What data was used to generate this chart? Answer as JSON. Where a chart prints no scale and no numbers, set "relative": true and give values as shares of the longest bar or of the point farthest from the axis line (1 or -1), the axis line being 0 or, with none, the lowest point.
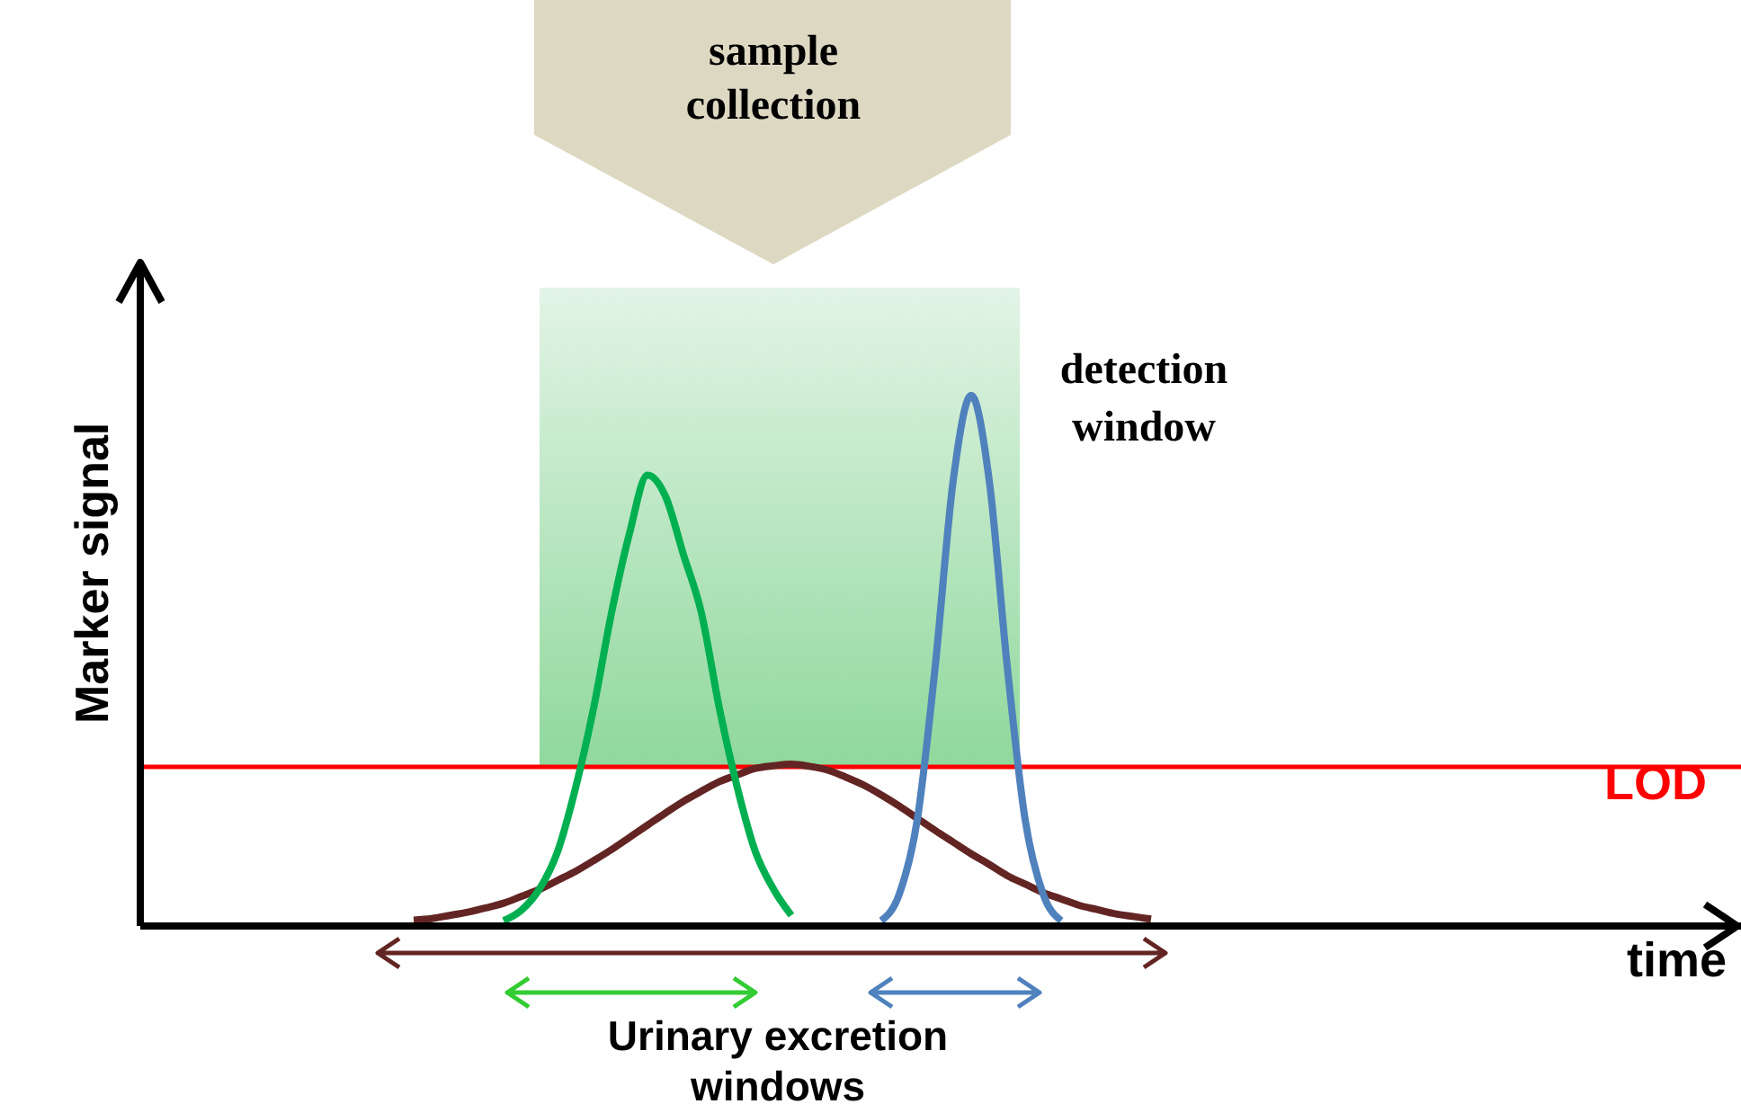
{
  "chart_data": {
    "type": "line",
    "relative": true,
    "ylabel": "Marker signal",
    "marker": "none",
    "line_style": "solid",
    "categories": [
      null,
      null,
      null,
      null,
      null,
      null,
      null,
      null,
      null,
      null,
      null,
      null,
      null,
      null,
      null,
      null,
      null,
      null,
      null,
      null,
      null,
      null,
      null,
      null,
      null,
      null,
      null,
      null,
      null,
      null,
      null,
      null,
      null,
      null,
      null,
      null,
      null,
      null,
      null,
      null,
      null,
      null,
      null,
      null,
      null,
      null,
      null,
      null,
      null,
      null,
      null,
      null,
      null,
      null,
      null,
      null,
      null
    ],
    "series": [
      {
        "color": "#632523",
        "values": [
          null,
          null,
          null,
          null,
          null,
          null,
          null,
          null,
          null,
          0.011,
          0.014,
          0.02,
          0.026,
          0.034,
          0.043,
          0.056,
          0.069,
          0.086,
          0.103,
          0.123,
          0.144,
          0.167,
          0.19,
          0.213,
          0.235,
          0.254,
          0.272,
          0.285,
          0.297,
          0.302,
          0.305,
          0.301,
          0.294,
          0.281,
          0.266,
          0.247,
          0.226,
          0.203,
          0.18,
          0.158,
          0.136,
          0.116,
          0.095,
          0.079,
          0.063,
          0.051,
          0.039,
          0.031,
          0.023,
          0.018,
          0.013,
          null,
          null,
          null,
          null,
          null,
          null
        ]
      },
      {
        "color": "#00b050",
        "values": [
          null,
          null,
          null,
          null,
          null,
          null,
          null,
          null,
          null,
          null,
          null,
          null,
          null,
          null,
          0.01,
          0.03,
          0.07,
          0.14,
          0.26,
          0.41,
          0.59,
          0.74,
          0.85,
          0.81,
          0.7,
          0.59,
          0.41,
          0.26,
          0.14,
          0.07,
          0.02,
          null,
          null,
          null,
          null,
          null,
          null,
          null,
          null,
          null,
          null,
          null,
          null,
          null,
          null,
          null,
          null,
          null,
          null,
          null,
          null,
          null,
          null,
          null,
          null,
          null,
          null
        ]
      },
      {
        "color": "#4f81bd",
        "values": [
          null,
          null,
          null,
          null,
          null,
          null,
          null,
          null,
          null,
          null,
          null,
          null,
          null,
          null,
          null,
          null,
          null,
          null,
          null,
          null,
          null,
          null,
          null,
          null,
          null,
          null,
          null,
          null,
          null,
          null,
          null,
          null,
          null,
          null,
          null,
          0.01,
          0.06,
          0.2,
          0.49,
          0.84,
          1,
          0.84,
          0.49,
          0.2,
          0.06,
          0.01,
          null,
          null,
          null,
          null,
          null,
          null,
          null,
          null,
          null,
          null,
          null
        ]
      }
    ],
    "ref_lines": [
      {
        "axis": "y",
        "value": 0.3,
        "label": "LOD",
        "color": "#ff0000",
        "line_style": "solid"
      }
    ],
    "annotations": [
      "sample collection",
      "detection window",
      "Urinary excretion windows",
      "time"
    ]
  }
}
